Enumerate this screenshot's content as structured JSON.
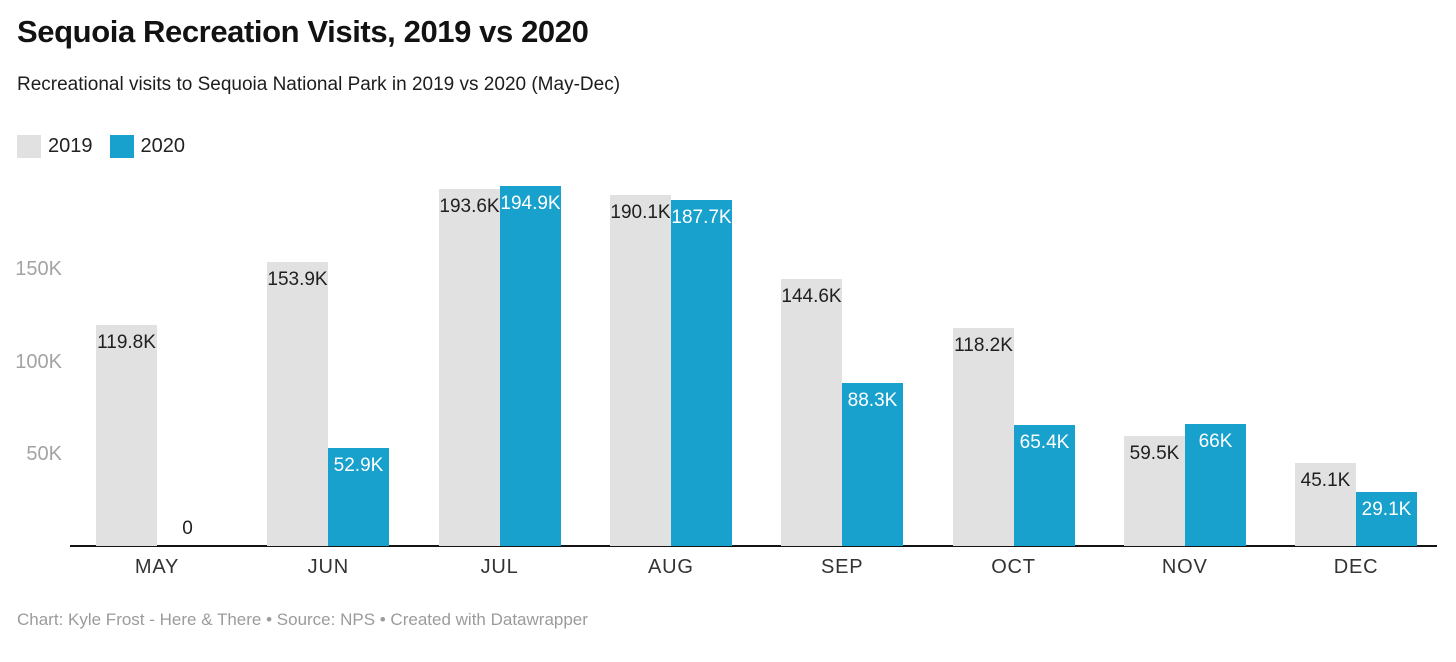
{
  "header": {
    "title": "Sequoia Recreation Visits, 2019 vs 2020",
    "subtitle": "Recreational visits to Sequoia National Park in 2019 vs 2020 (May-Dec)"
  },
  "legend": [
    {
      "label": "2019",
      "color": "#E1E1E1"
    },
    {
      "label": "2020",
      "color": "#18A1CD"
    }
  ],
  "colors": {
    "bar_2019": "#E1E1E1",
    "bar_2020": "#18A1CD",
    "label_dark": "#1f1f1f",
    "label_light": "#ffffff",
    "axis": "#141414",
    "ytick": "#a3a3a3"
  },
  "chart_data": {
    "type": "bar",
    "title": "Sequoia Recreation Visits, 2019 vs 2020",
    "subtitle": "Recreational visits to Sequoia National Park in 2019 vs 2020 (May-Dec)",
    "categories": [
      "MAY",
      "JUN",
      "JUL",
      "AUG",
      "SEP",
      "OCT",
      "NOV",
      "DEC"
    ],
    "series": [
      {
        "name": "2019",
        "color": "#E1E1E1",
        "values": [
          119800,
          153900,
          193600,
          190100,
          144600,
          118200,
          59500,
          45100
        ],
        "labels": [
          "119.8K",
          "153.9K",
          "193.6K",
          "190.1K",
          "144.6K",
          "118.2K",
          "59.5K",
          "45.1K"
        ]
      },
      {
        "name": "2020",
        "color": "#18A1CD",
        "values": [
          0,
          52900,
          194900,
          187700,
          88300,
          65400,
          66000,
          29100
        ],
        "labels": [
          "0",
          "52.9K",
          "194.9K",
          "187.7K",
          "88.3K",
          "65.4K",
          "66K",
          "29.1K"
        ]
      }
    ],
    "y_ticks": [
      {
        "value": 50000,
        "label": "50K"
      },
      {
        "value": 100000,
        "label": "100K"
      },
      {
        "value": 150000,
        "label": "150K"
      }
    ],
    "ylim": [
      0,
      205000
    ],
    "grid": false,
    "legend_position": "top-left",
    "xlabel": "",
    "ylabel": ""
  },
  "footer": {
    "text": "Chart: Kyle Frost - Here & There • Source: NPS • Created with Datawrapper"
  }
}
